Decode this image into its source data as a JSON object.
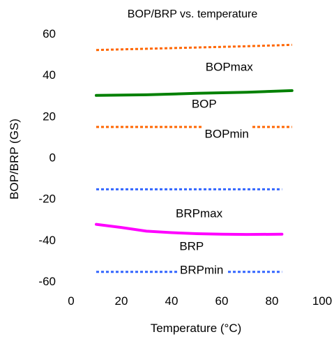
{
  "chart_data": {
    "type": "line",
    "title": "BOP/BRP vs. temperature",
    "xlabel": "Temperature (°C)",
    "ylabel": "BOP/BRP (GS)",
    "xlim": [
      0,
      100
    ],
    "ylim": [
      -60,
      60
    ],
    "xticks": [
      "0",
      "20",
      "40",
      "60",
      "80",
      "100"
    ],
    "yticks": [
      "60",
      "40",
      "20",
      "0",
      "-20",
      "-40",
      "-60"
    ],
    "grid": false,
    "legend": "none",
    "series": [
      {
        "name": "BOPmax",
        "color": "#ff6600",
        "style": "dotted",
        "x": [
          10,
          30,
          50,
          70,
          88
        ],
        "y": [
          52,
          52.6,
          53.2,
          53.8,
          54.5
        ],
        "label_at": [
          63,
          44
        ]
      },
      {
        "name": "BOP",
        "color": "#008000",
        "style": "solid",
        "x": [
          10,
          30,
          50,
          70,
          88
        ],
        "y": [
          30,
          30.3,
          31,
          31.5,
          32.3
        ],
        "label_at": [
          53,
          26
        ]
      },
      {
        "name": "BOPmin",
        "color": "#ff6600",
        "style": "dotted",
        "x": [
          10,
          30,
          50,
          70,
          88
        ],
        "y": [
          14.7,
          14.7,
          14.7,
          14.7,
          14.7
        ],
        "label_at": [
          62,
          11.5
        ]
      },
      {
        "name": "",
        "color": "#3366ff",
        "style": "dotted",
        "x": [
          10,
          30,
          50,
          70,
          84
        ],
        "y": [
          -15.5,
          -15.5,
          -15.5,
          -15.5,
          -15.5
        ]
      },
      {
        "name": "BRPmax",
        "color": "",
        "style": "none",
        "x": [],
        "y": [],
        "label_at": [
          51,
          -27
        ]
      },
      {
        "name": "BRP",
        "color": "#ff00ff",
        "style": "solid",
        "x": [
          10,
          20,
          30,
          40,
          50,
          60,
          70,
          84
        ],
        "y": [
          -32.5,
          -34,
          -35.8,
          -36.5,
          -37,
          -37.3,
          -37.4,
          -37.3
        ],
        "label_at": [
          48,
          -43
        ]
      },
      {
        "name": "BRPmin",
        "color": "#3366ff",
        "style": "dotted",
        "x": [
          10,
          30,
          50,
          70,
          84
        ],
        "y": [
          -55.5,
          -55.5,
          -55.5,
          -55.5,
          -55.5
        ],
        "label_at": [
          52,
          -54.5
        ]
      }
    ]
  }
}
